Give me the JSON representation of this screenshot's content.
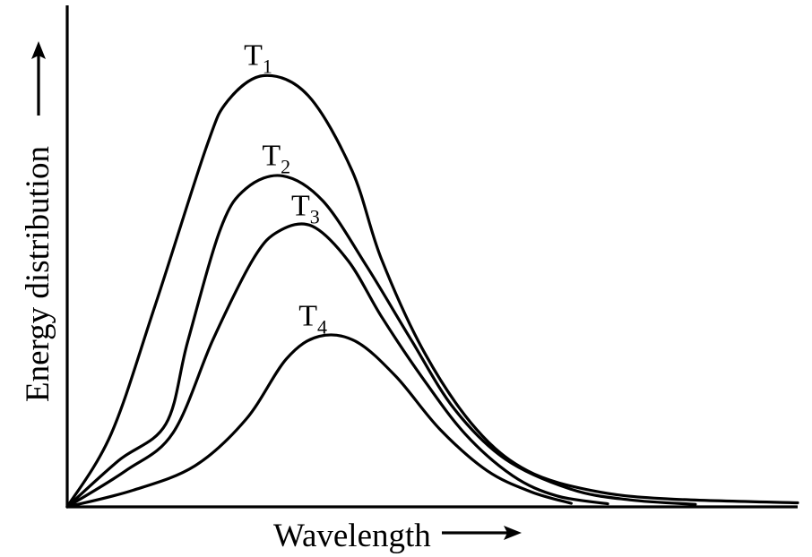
{
  "chart_data": {
    "type": "line",
    "xlabel": "Wavelength",
    "ylabel": "Energy distribution",
    "x_ticks": [],
    "y_ticks": [],
    "grid": false,
    "legend": "none",
    "xlim": [
      0,
      10
    ],
    "ylim": [
      0,
      10
    ],
    "series": [
      {
        "name": "T",
        "subscript": "1",
        "color": "#000000",
        "points": [
          [
            0.0,
            0.0
          ],
          [
            0.6,
            1.45
          ],
          [
            1.2,
            4.0
          ],
          [
            1.9,
            7.15
          ],
          [
            2.2,
            8.1
          ],
          [
            2.7,
            8.6
          ],
          [
            3.3,
            8.2
          ],
          [
            3.9,
            6.7
          ],
          [
            4.3,
            4.95
          ],
          [
            4.9,
            3.05
          ],
          [
            5.6,
            1.55
          ],
          [
            6.3,
            0.72
          ],
          [
            7.2,
            0.32
          ],
          [
            8.2,
            0.16
          ],
          [
            10.0,
            0.08
          ]
        ]
      },
      {
        "name": "T",
        "subscript": "2",
        "color": "#000000",
        "points": [
          [
            0.0,
            0.0
          ],
          [
            0.7,
            0.92
          ],
          [
            1.35,
            1.65
          ],
          [
            1.65,
            3.3
          ],
          [
            2.1,
            5.55
          ],
          [
            2.45,
            6.35
          ],
          [
            2.95,
            6.6
          ],
          [
            3.5,
            6.1
          ],
          [
            4.1,
            4.8
          ],
          [
            4.7,
            3.35
          ],
          [
            5.3,
            1.95
          ],
          [
            6.0,
            0.95
          ],
          [
            6.9,
            0.35
          ],
          [
            7.7,
            0.14
          ],
          [
            8.6,
            0.05
          ]
        ]
      },
      {
        "name": "T",
        "subscript": "3",
        "color": "#000000",
        "points": [
          [
            0.0,
            0.0
          ],
          [
            0.8,
            0.72
          ],
          [
            1.45,
            1.48
          ],
          [
            2.0,
            3.35
          ],
          [
            2.55,
            4.95
          ],
          [
            2.9,
            5.5
          ],
          [
            3.35,
            5.6
          ],
          [
            3.85,
            4.9
          ],
          [
            4.3,
            3.8
          ],
          [
            4.85,
            2.6
          ],
          [
            5.45,
            1.45
          ],
          [
            6.1,
            0.62
          ],
          [
            6.7,
            0.22
          ],
          [
            7.4,
            0.06
          ]
        ]
      },
      {
        "name": "T",
        "subscript": "4",
        "color": "#000000",
        "points": [
          [
            0.0,
            0.0
          ],
          [
            0.9,
            0.33
          ],
          [
            1.75,
            0.82
          ],
          [
            2.45,
            1.75
          ],
          [
            3.0,
            2.95
          ],
          [
            3.45,
            3.4
          ],
          [
            3.95,
            3.3
          ],
          [
            4.5,
            2.6
          ],
          [
            5.1,
            1.55
          ],
          [
            5.75,
            0.72
          ],
          [
            6.35,
            0.3
          ],
          [
            6.9,
            0.07
          ]
        ]
      }
    ]
  }
}
